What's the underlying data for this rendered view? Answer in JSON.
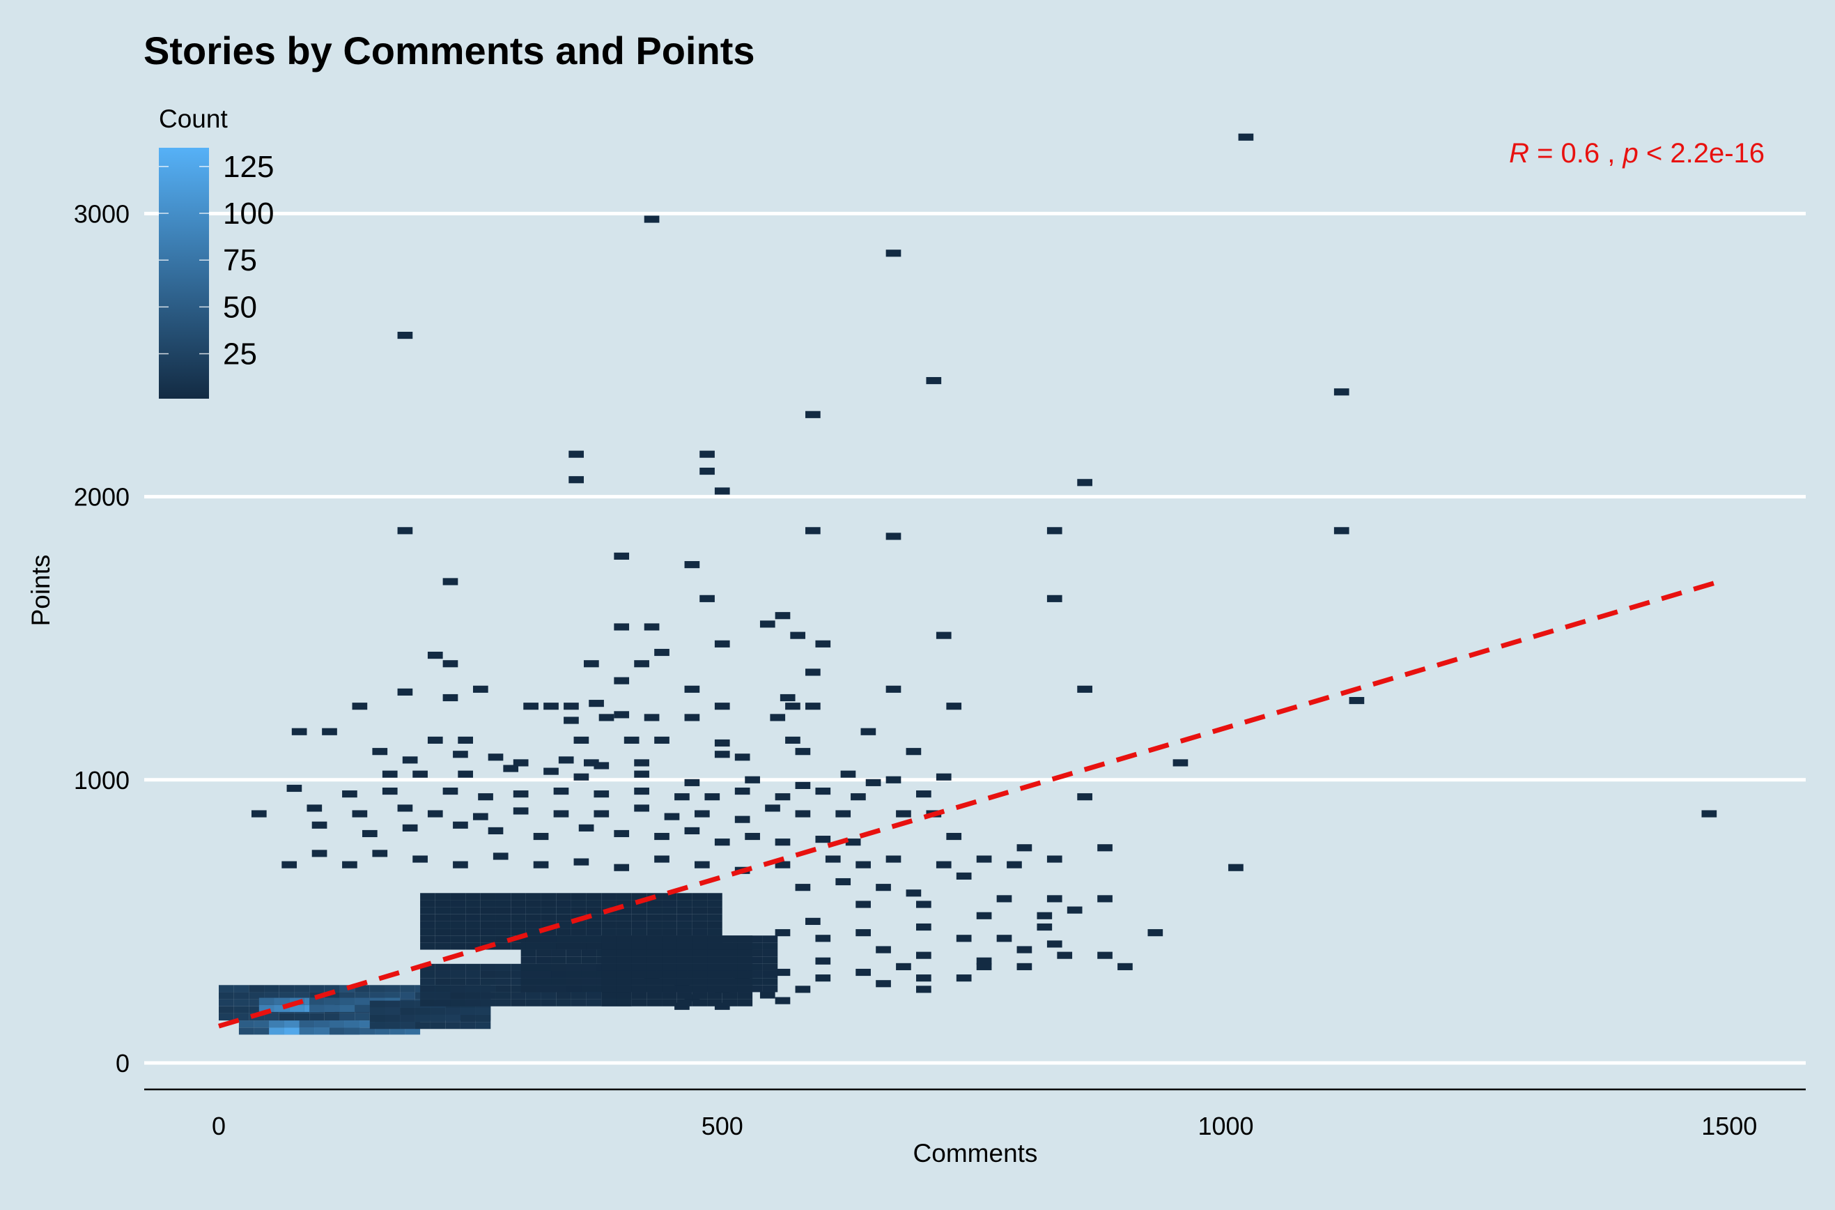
{
  "chart_data": {
    "type": "heatmap",
    "subtype": "2d-binned-scatter",
    "title": "Stories by Comments and Points",
    "xlabel": "Comments",
    "ylabel": "Points",
    "xlim": [
      -150,
      1570
    ],
    "ylim": [
      -100,
      3320
    ],
    "x_ticks": [
      0,
      500,
      1000,
      1500
    ],
    "y_ticks": [
      0,
      1000,
      2000,
      3000
    ],
    "grid": {
      "major_y": true,
      "major_x": false,
      "color": "#ffffff"
    },
    "legend": {
      "title": "Count",
      "position": "top-left",
      "ticks": [
        25,
        50,
        75,
        100,
        125
      ],
      "range": [
        1,
        135
      ],
      "low_color": "#132b43",
      "high_color": "#56b1f7"
    },
    "bin_size": {
      "x": 15,
      "y": 25
    },
    "annotation": {
      "parts": [
        "R",
        " = 0.6 , ",
        "p",
        " < 2.2e-16"
      ],
      "color": "#e8110f"
    },
    "trend_line": {
      "from": [
        0,
        130
      ],
      "to": [
        1490,
        1700
      ],
      "color": "#e8110f",
      "style": "dashed"
    },
    "bins": [
      [
        1020,
        3270,
        1
      ],
      [
        430,
        2980,
        1
      ],
      [
        670,
        2860,
        1
      ],
      [
        185,
        2570,
        1
      ],
      [
        710,
        2410,
        1
      ],
      [
        1115,
        2370,
        1
      ],
      [
        590,
        2290,
        1
      ],
      [
        355,
        2150,
        1
      ],
      [
        485,
        2150,
        1
      ],
      [
        355,
        2060,
        1
      ],
      [
        485,
        2090,
        1
      ],
      [
        500,
        2020,
        1
      ],
      [
        860,
        2050,
        1
      ],
      [
        185,
        1880,
        1
      ],
      [
        590,
        1880,
        1
      ],
      [
        830,
        1880,
        1
      ],
      [
        1115,
        1880,
        1
      ],
      [
        670,
        1860,
        1
      ],
      [
        400,
        1790,
        1
      ],
      [
        470,
        1760,
        1
      ],
      [
        230,
        1700,
        1
      ],
      [
        485,
        1640,
        1
      ],
      [
        830,
        1640,
        1
      ],
      [
        400,
        1540,
        1
      ],
      [
        430,
        1540,
        1
      ],
      [
        545,
        1550,
        1
      ],
      [
        560,
        1580,
        1
      ],
      [
        575,
        1510,
        1
      ],
      [
        500,
        1480,
        1
      ],
      [
        600,
        1480,
        1
      ],
      [
        720,
        1510,
        1
      ],
      [
        215,
        1440,
        1
      ],
      [
        230,
        1410,
        1
      ],
      [
        370,
        1410,
        1
      ],
      [
        420,
        1410,
        1
      ],
      [
        440,
        1450,
        1
      ],
      [
        400,
        1350,
        1
      ],
      [
        590,
        1380,
        1
      ],
      [
        185,
        1310,
        1
      ],
      [
        260,
        1320,
        1
      ],
      [
        310,
        1260,
        1
      ],
      [
        330,
        1260,
        1
      ],
      [
        350,
        1260,
        1
      ],
      [
        375,
        1270,
        1
      ],
      [
        230,
        1290,
        1
      ],
      [
        470,
        1320,
        1
      ],
      [
        565,
        1290,
        1
      ],
      [
        670,
        1320,
        1
      ],
      [
        860,
        1320,
        1
      ],
      [
        140,
        1260,
        1
      ],
      [
        385,
        1220,
        1
      ],
      [
        400,
        1230,
        1
      ],
      [
        430,
        1220,
        1
      ],
      [
        500,
        1260,
        1
      ],
      [
        570,
        1260,
        1
      ],
      [
        590,
        1260,
        1
      ],
      [
        730,
        1260,
        1
      ],
      [
        80,
        1170,
        1
      ],
      [
        110,
        1170,
        1
      ],
      [
        350,
        1210,
        1
      ],
      [
        470,
        1220,
        1
      ],
      [
        555,
        1220,
        1
      ],
      [
        645,
        1170,
        1
      ],
      [
        1130,
        1280,
        1
      ],
      [
        160,
        1100,
        1
      ],
      [
        215,
        1140,
        1
      ],
      [
        245,
        1140,
        1
      ],
      [
        360,
        1140,
        1
      ],
      [
        410,
        1140,
        1
      ],
      [
        440,
        1140,
        1
      ],
      [
        500,
        1130,
        1
      ],
      [
        570,
        1140,
        1
      ],
      [
        580,
        1100,
        1
      ],
      [
        690,
        1100,
        1
      ],
      [
        190,
        1070,
        1
      ],
      [
        240,
        1090,
        1
      ],
      [
        275,
        1080,
        1
      ],
      [
        300,
        1060,
        1
      ],
      [
        345,
        1070,
        1
      ],
      [
        370,
        1060,
        1
      ],
      [
        380,
        1050,
        1
      ],
      [
        420,
        1060,
        1
      ],
      [
        500,
        1090,
        1
      ],
      [
        520,
        1080,
        1
      ],
      [
        170,
        1020,
        1
      ],
      [
        200,
        1020,
        1
      ],
      [
        245,
        1020,
        1
      ],
      [
        290,
        1040,
        1
      ],
      [
        330,
        1030,
        1
      ],
      [
        360,
        1010,
        1
      ],
      [
        420,
        1020,
        1
      ],
      [
        470,
        990,
        1
      ],
      [
        530,
        1000,
        1
      ],
      [
        580,
        980,
        1
      ],
      [
        625,
        1020,
        1
      ],
      [
        650,
        990,
        1
      ],
      [
        670,
        1000,
        1
      ],
      [
        720,
        1010,
        1
      ],
      [
        955,
        1060,
        1
      ],
      [
        75,
        970,
        1
      ],
      [
        130,
        950,
        1
      ],
      [
        170,
        960,
        1
      ],
      [
        230,
        960,
        1
      ],
      [
        265,
        940,
        1
      ],
      [
        300,
        950,
        1
      ],
      [
        340,
        960,
        1
      ],
      [
        380,
        950,
        1
      ],
      [
        420,
        960,
        1
      ],
      [
        460,
        940,
        1
      ],
      [
        490,
        940,
        1
      ],
      [
        520,
        960,
        1
      ],
      [
        560,
        940,
        1
      ],
      [
        600,
        960,
        1
      ],
      [
        635,
        940,
        1
      ],
      [
        700,
        950,
        1
      ],
      [
        860,
        940,
        1
      ],
      [
        40,
        880,
        1
      ],
      [
        95,
        900,
        1
      ],
      [
        140,
        880,
        1
      ],
      [
        185,
        900,
        1
      ],
      [
        215,
        880,
        1
      ],
      [
        260,
        870,
        1
      ],
      [
        300,
        890,
        1
      ],
      [
        340,
        880,
        1
      ],
      [
        380,
        880,
        1
      ],
      [
        420,
        900,
        1
      ],
      [
        450,
        870,
        1
      ],
      [
        480,
        880,
        1
      ],
      [
        520,
        860,
        1
      ],
      [
        550,
        900,
        1
      ],
      [
        580,
        880,
        1
      ],
      [
        620,
        880,
        1
      ],
      [
        680,
        880,
        1
      ],
      [
        710,
        880,
        1
      ],
      [
        1480,
        880,
        1
      ],
      [
        100,
        840,
        1
      ],
      [
        150,
        810,
        1
      ],
      [
        190,
        830,
        1
      ],
      [
        240,
        840,
        1
      ],
      [
        275,
        820,
        1
      ],
      [
        320,
        800,
        1
      ],
      [
        365,
        830,
        1
      ],
      [
        400,
        810,
        1
      ],
      [
        440,
        800,
        1
      ],
      [
        470,
        820,
        1
      ],
      [
        500,
        780,
        1
      ],
      [
        530,
        800,
        1
      ],
      [
        560,
        780,
        1
      ],
      [
        600,
        790,
        1
      ],
      [
        630,
        780,
        1
      ],
      [
        730,
        800,
        1
      ],
      [
        70,
        700,
        1
      ],
      [
        100,
        740,
        1
      ],
      [
        130,
        700,
        1
      ],
      [
        160,
        740,
        1
      ],
      [
        200,
        720,
        1
      ],
      [
        240,
        700,
        1
      ],
      [
        280,
        730,
        1
      ],
      [
        320,
        700,
        1
      ],
      [
        360,
        710,
        1
      ],
      [
        400,
        690,
        1
      ],
      [
        440,
        720,
        1
      ],
      [
        480,
        700,
        1
      ],
      [
        520,
        680,
        1
      ],
      [
        560,
        700,
        1
      ],
      [
        610,
        720,
        1
      ],
      [
        640,
        700,
        1
      ],
      [
        670,
        720,
        1
      ],
      [
        720,
        700,
        1
      ],
      [
        760,
        720,
        1
      ],
      [
        800,
        760,
        1
      ],
      [
        830,
        720,
        1
      ],
      [
        880,
        760,
        1
      ],
      [
        1010,
        690,
        1
      ],
      [
        580,
        620,
        1
      ],
      [
        620,
        640,
        1
      ],
      [
        660,
        620,
        1
      ],
      [
        690,
        600,
        1
      ],
      [
        740,
        660,
        1
      ],
      [
        790,
        700,
        1
      ],
      [
        640,
        560,
        1
      ],
      [
        700,
        560,
        1
      ],
      [
        780,
        580,
        1
      ],
      [
        830,
        580,
        1
      ],
      [
        760,
        520,
        1
      ],
      [
        820,
        520,
        1
      ],
      [
        850,
        540,
        1
      ],
      [
        880,
        580,
        1
      ],
      [
        590,
        500,
        1
      ],
      [
        640,
        460,
        1
      ],
      [
        700,
        480,
        1
      ],
      [
        740,
        440,
        1
      ],
      [
        780,
        440,
        1
      ],
      [
        820,
        480,
        1
      ],
      [
        930,
        460,
        1
      ],
      [
        560,
        460,
        1
      ],
      [
        600,
        440,
        1
      ],
      [
        660,
        400,
        1
      ],
      [
        700,
        380,
        1
      ],
      [
        760,
        360,
        1
      ],
      [
        800,
        400,
        1
      ],
      [
        830,
        420,
        1
      ],
      [
        880,
        380,
        1
      ],
      [
        640,
        320,
        1
      ],
      [
        700,
        300,
        1
      ],
      [
        760,
        340,
        1
      ],
      [
        800,
        340,
        1
      ],
      [
        600,
        360,
        1
      ],
      [
        680,
        340,
        1
      ],
      [
        740,
        300,
        1
      ],
      [
        560,
        320,
        1
      ],
      [
        600,
        300,
        1
      ],
      [
        660,
        280,
        1
      ],
      [
        700,
        260,
        1
      ],
      [
        520,
        300,
        1
      ],
      [
        580,
        260,
        1
      ],
      [
        545,
        240,
        1
      ],
      [
        460,
        280,
        1
      ],
      [
        500,
        260,
        1
      ],
      [
        430,
        290,
        1
      ],
      [
        470,
        230,
        1
      ],
      [
        400,
        260,
        1
      ],
      [
        560,
        220,
        1
      ],
      [
        840,
        380,
        1
      ],
      [
        900,
        340,
        1
      ],
      [
        500,
        200,
        1
      ],
      [
        460,
        200,
        1
      ]
    ]
  }
}
